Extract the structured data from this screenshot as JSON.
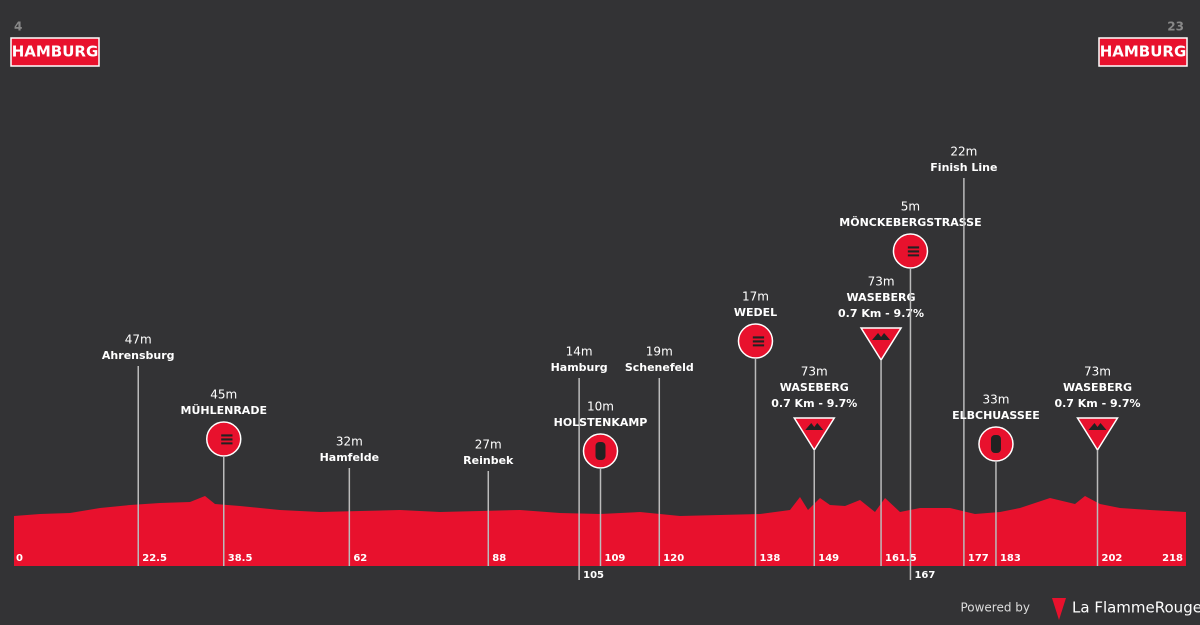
{
  "start": {
    "number": "4",
    "city": "HAMBURG"
  },
  "finish": {
    "number": "23",
    "city": "HAMBURG"
  },
  "waypoints": [
    {
      "km": 22.5,
      "altitude": "47m",
      "name": "Ahrensburg"
    },
    {
      "km": 38.5,
      "altitude": "45m",
      "name": "MÜHLENRADE",
      "icon": "sprint"
    },
    {
      "km": 62,
      "altitude": "32m",
      "name": "Hamfelde"
    },
    {
      "km": 88,
      "altitude": "27m",
      "name": "Reinbek"
    },
    {
      "km": 105,
      "altitude": "14m",
      "name": "Hamburg"
    },
    {
      "km": 109,
      "altitude": "10m",
      "name": "HOLSTENKAMP",
      "icon": "feed"
    },
    {
      "km": 120,
      "altitude": "19m",
      "name": "Schenefeld"
    },
    {
      "km": 138,
      "altitude": "17m",
      "name": "WEDEL",
      "icon": "sprint"
    },
    {
      "km": 149,
      "altitude": "73m",
      "name": "WASEBERG",
      "detail": "0.7 Km - 9.7%",
      "icon": "climb"
    },
    {
      "km": 161.5,
      "altitude": "73m",
      "name": "WASEBERG",
      "detail": "0.7 Km - 9.7%",
      "icon": "climb"
    },
    {
      "km": 167,
      "altitude": "5m",
      "name": "MÖNCKEBERGSTRASSE",
      "icon": "sprint"
    },
    {
      "km": 177,
      "altitude": "22m",
      "name": "Finish Line"
    },
    {
      "km": 183,
      "altitude": "33m",
      "name": "ELBCHUASSEE",
      "icon": "feed"
    },
    {
      "km": 202,
      "altitude": "73m",
      "name": "WASEBERG",
      "detail": "0.7 Km - 9.7%",
      "icon": "climb"
    }
  ],
  "distance_start": 0,
  "distance_end": 218,
  "footer": {
    "powered_by": "Powered by",
    "brand": "La FlammeRouge"
  }
}
